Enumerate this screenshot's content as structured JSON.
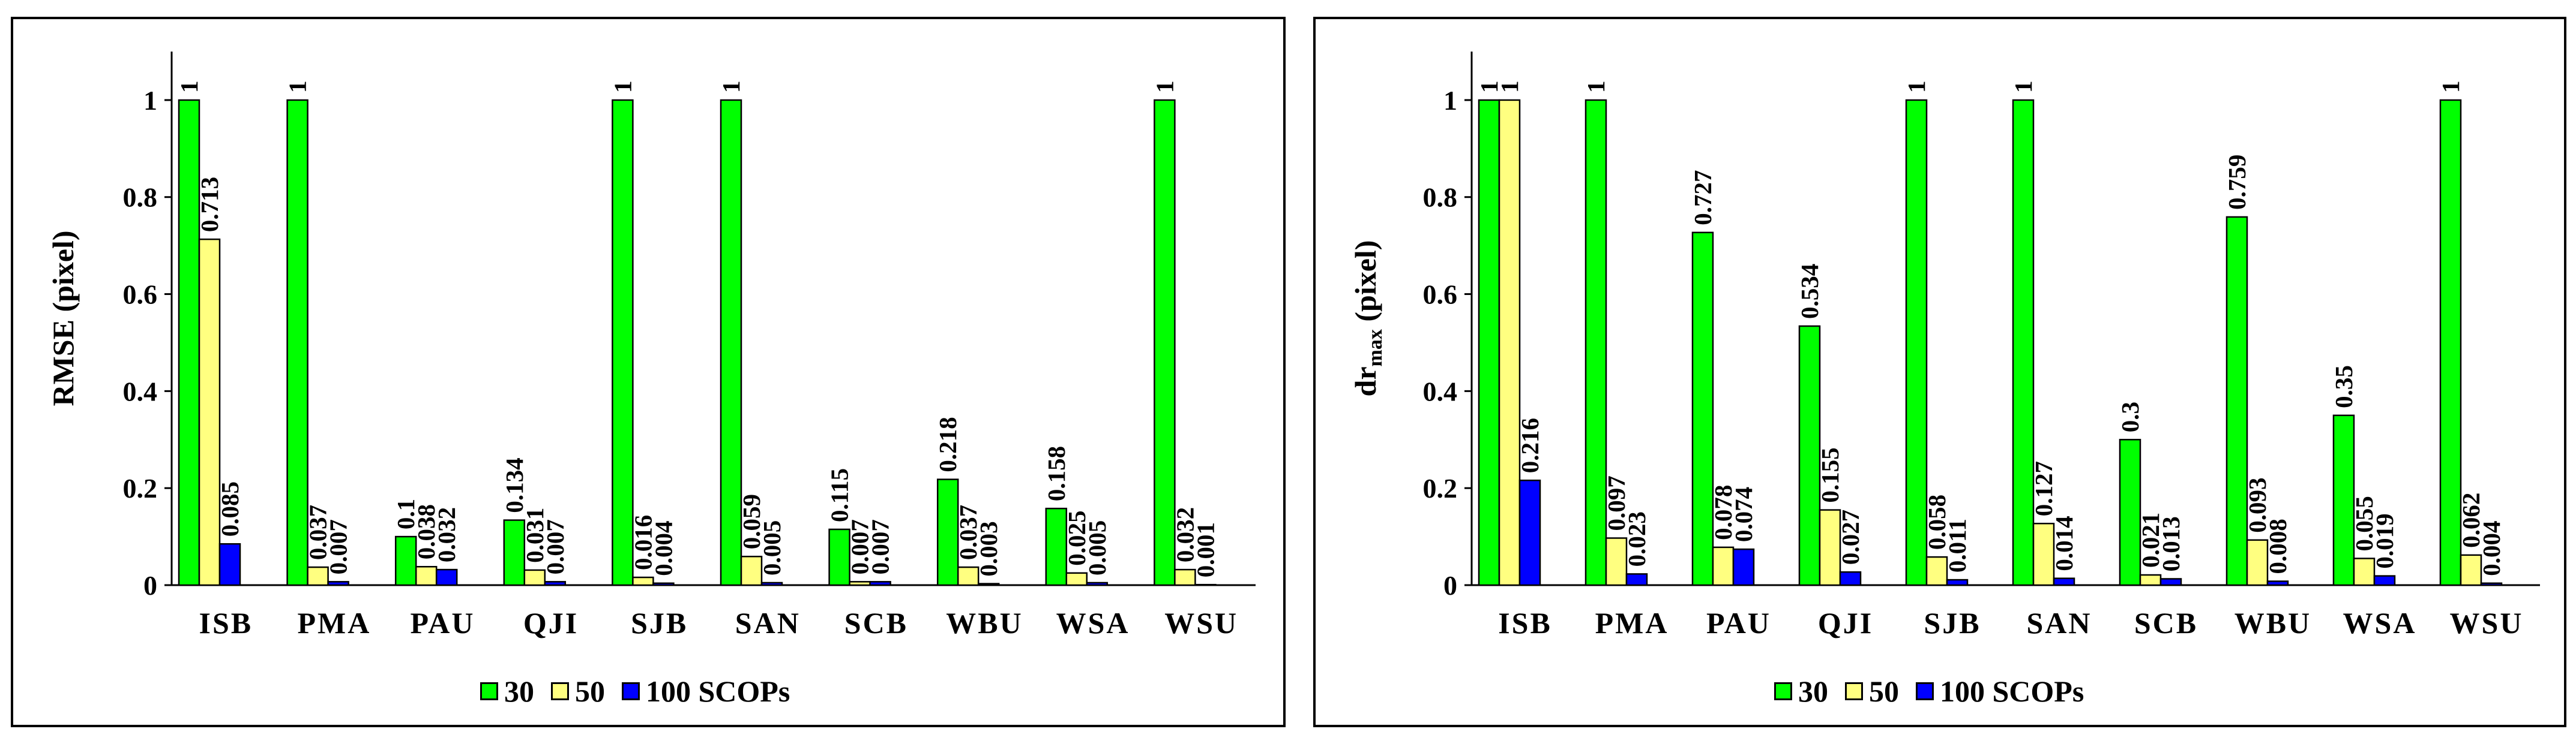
{
  "colors": {
    "s30": "#00ff00",
    "s50": "#ffff80",
    "s100": "#0000ff"
  },
  "chart_data": [
    {
      "type": "bar",
      "ylabel": "RMSE (pixel)",
      "ylabel_sub": "",
      "ylabel_tail": "",
      "ylim": [
        0,
        1.1
      ],
      "yticks": [
        "0",
        "0.2",
        "0.4",
        "0.6",
        "0.8",
        "1"
      ],
      "categories": [
        "ISB",
        "PMA",
        "PAU",
        "QJI",
        "SJB",
        "SAN",
        "SCB",
        "WBU",
        "WSA",
        "WSU"
      ],
      "series": [
        {
          "name": "30",
          "values": [
            1,
            1,
            0.1,
            0.134,
            1,
            1,
            0.115,
            0.218,
            0.158,
            1
          ],
          "labels": [
            "1",
            "1",
            "0.1",
            "0.134",
            "1",
            "1",
            "0.115",
            "0.218",
            "0.158",
            "1"
          ]
        },
        {
          "name": "50",
          "values": [
            0.713,
            0.037,
            0.038,
            0.031,
            0.016,
            0.059,
            0.007,
            0.037,
            0.025,
            0.032
          ],
          "labels": [
            "0.713",
            "0.037",
            "0.038",
            "0.031",
            "0.016",
            "0.059",
            "0.007",
            "0.037",
            "0.025",
            "0.032"
          ]
        },
        {
          "name": "100 SCOPs",
          "values": [
            0.085,
            0.007,
            0.032,
            0.007,
            0.004,
            0.005,
            0.007,
            0.003,
            0.005,
            0.001
          ],
          "labels": [
            "0.085",
            "0.007",
            "0.032",
            "0.007",
            "0.004",
            "0.005",
            "0.007",
            "0.003",
            "0.005",
            "0.001"
          ]
        }
      ],
      "legend": [
        "30",
        "50",
        "100 SCOPs"
      ]
    },
    {
      "type": "bar",
      "ylabel": "dr",
      "ylabel_sub": "max",
      "ylabel_tail": " (pixel)",
      "ylim": [
        0,
        1.1
      ],
      "yticks": [
        "0",
        "0.2",
        "0.4",
        "0.6",
        "0.8",
        "1"
      ],
      "categories": [
        "ISB",
        "PMA",
        "PAU",
        "QJI",
        "SJB",
        "SAN",
        "SCB",
        "WBU",
        "WSA",
        "WSU"
      ],
      "series": [
        {
          "name": "30",
          "values": [
            1,
            1,
            0.727,
            0.534,
            1,
            1,
            0.3,
            0.759,
            0.35,
            1
          ],
          "labels": [
            "1",
            "1",
            "0.727",
            "0.534",
            "1",
            "1",
            "0.3",
            "0.759",
            "0.35",
            "1"
          ]
        },
        {
          "name": "50",
          "values": [
            1,
            0.097,
            0.078,
            0.155,
            0.058,
            0.127,
            0.021,
            0.093,
            0.055,
            0.062
          ],
          "labels": [
            "1",
            "0.097",
            "0.078",
            "0.155",
            "0.058",
            "0.127",
            "0.021",
            "0.093",
            "0.055",
            "0.062"
          ]
        },
        {
          "name": "100 SCOPs",
          "values": [
            0.216,
            0.023,
            0.074,
            0.027,
            0.011,
            0.014,
            0.013,
            0.008,
            0.019,
            0.004
          ],
          "labels": [
            "0.216",
            "0.023",
            "0.074",
            "0.027",
            "0.011",
            "0.014",
            "0.013",
            "0.008",
            "0.019",
            "0.004"
          ]
        }
      ],
      "legend": [
        "30",
        "50",
        "100 SCOPs"
      ]
    }
  ]
}
